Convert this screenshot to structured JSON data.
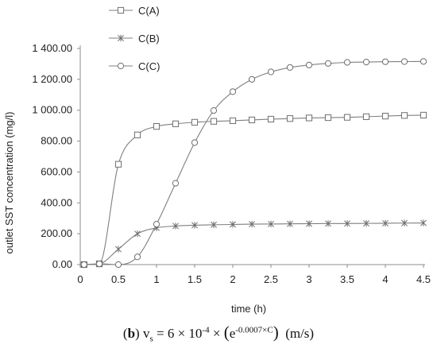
{
  "chart_data": {
    "type": "line",
    "xlabel": "time (h)",
    "ylabel": "outlet  SST concentration (mg/l)",
    "xlim": [
      0,
      4.5
    ],
    "ylim": [
      0,
      1400
    ],
    "x_ticks": [
      "0",
      "0.5",
      "1",
      "1.5",
      "2",
      "2.5",
      "3",
      "3.5",
      "4",
      "4.5"
    ],
    "y_ticks": [
      "0.00",
      "200.00",
      "400.00",
      "600.00",
      "800.00",
      "1 000.00",
      "1 200.00",
      "1 400.00"
    ],
    "grid": false,
    "legend_position": "top-left",
    "series": [
      {
        "name": "C(A)",
        "marker": "square",
        "x": [
          0.05,
          0.25,
          0.5,
          0.75,
          1.0,
          1.25,
          1.5,
          1.75,
          2.0,
          2.25,
          2.5,
          2.75,
          3.0,
          3.25,
          3.5,
          3.75,
          4.0,
          4.25,
          4.5
        ],
        "y": [
          0,
          5,
          650,
          840,
          895,
          912,
          922,
          928,
          932,
          937,
          942,
          946,
          950,
          952,
          954,
          958,
          962,
          966,
          968
        ]
      },
      {
        "name": "C(B)",
        "marker": "star",
        "x": [
          0.05,
          0.25,
          0.5,
          0.75,
          1.0,
          1.25,
          1.5,
          1.75,
          2.0,
          2.25,
          2.5,
          2.75,
          3.0,
          3.25,
          3.5,
          3.75,
          4.0,
          4.25,
          4.5
        ],
        "y": [
          0,
          5,
          100,
          200,
          238,
          250,
          255,
          258,
          260,
          262,
          263,
          264,
          265,
          266,
          266,
          267,
          268,
          269,
          270
        ]
      },
      {
        "name": "C(C)",
        "marker": "circle",
        "x": [
          0.05,
          0.25,
          0.5,
          0.75,
          1.0,
          1.25,
          1.5,
          1.75,
          2.0,
          2.25,
          2.5,
          2.75,
          3.0,
          3.25,
          3.5,
          3.75,
          4.0,
          4.25,
          4.5
        ],
        "y": [
          0,
          5,
          0,
          50,
          262,
          527,
          790,
          998,
          1120,
          1200,
          1248,
          1277,
          1293,
          1303,
          1310,
          1312,
          1314,
          1315,
          1316
        ]
      }
    ]
  },
  "caption": {
    "label": "b",
    "v": "v",
    "v_sub": "s",
    "eq": " = 6 × 10",
    "exp1": "-4",
    "times": " × ",
    "e": "e",
    "exp2": "-0.0007×C",
    "units": "(m/s)"
  },
  "colors": {
    "line": "#7f7f7f",
    "axis": "#8c8c8c",
    "marker": "#6e6e6e"
  }
}
